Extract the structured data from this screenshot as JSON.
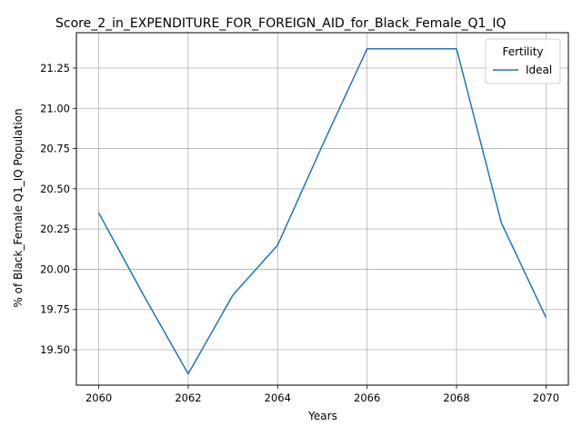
{
  "chart_data": {
    "type": "line",
    "title": "Score_2_in_EXPENDITURE_FOR_FOREIGN_AID_for_Black_Female_Q1_IQ",
    "xlabel": "Years",
    "ylabel": "% of Black_Female Q1_IQ Population",
    "xlim": [
      2059.5,
      2070.5
    ],
    "ylim": [
      19.28,
      21.47
    ],
    "x_ticks": [
      2060,
      2062,
      2064,
      2066,
      2068,
      2070
    ],
    "y_ticks": [
      19.5,
      19.75,
      20.0,
      20.25,
      20.5,
      20.75,
      21.0,
      21.25
    ],
    "grid": true,
    "legend": {
      "title": "Fertility",
      "placement": "top-right"
    },
    "x": [
      2060,
      2061,
      2062,
      2063,
      2064,
      2065,
      2066,
      2067,
      2068,
      2069,
      2070
    ],
    "series": [
      {
        "name": "Ideal",
        "color": "#1f77b4",
        "values": [
          20.35,
          19.84,
          19.35,
          19.84,
          20.15,
          20.77,
          21.37,
          21.37,
          21.37,
          20.29,
          19.7
        ]
      }
    ]
  }
}
